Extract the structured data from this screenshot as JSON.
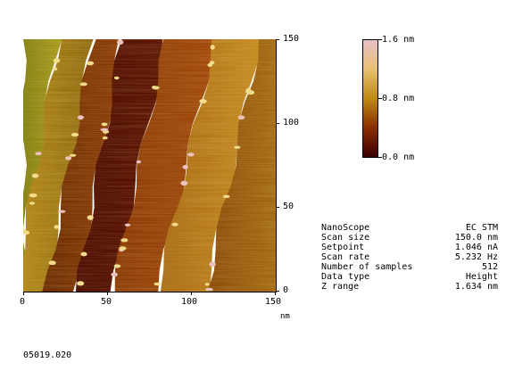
{
  "image": {
    "x_axis": {
      "ticks": [
        "0",
        "50",
        "100",
        "150"
      ],
      "unit": "nm"
    },
    "y_axis": {
      "ticks": [
        "150",
        "100",
        "50",
        "0"
      ]
    },
    "terraces": 5,
    "step_direction": "diagonal-upper-right"
  },
  "colorbar": {
    "top_label": "1.6 nm",
    "mid_label": "0.8 nm",
    "bottom_label": "0.0 nm",
    "colors": [
      "#3a0000",
      "#8a2e00",
      "#bd8a12",
      "#e6c070",
      "#e7c0c8"
    ]
  },
  "params": {
    "rows": [
      {
        "key": "NanoScope",
        "value": "EC STM"
      },
      {
        "key": "Scan size",
        "value": "150.0 nm"
      },
      {
        "key": "Setpoint",
        "value": "1.046 nA"
      },
      {
        "key": "Scan rate",
        "value": "5.232 Hz"
      },
      {
        "key": "Number of samples",
        "value": "512"
      },
      {
        "key": "Data type",
        "value": "Height"
      },
      {
        "key": "Z range",
        "value": "1.634 nm"
      }
    ]
  },
  "file_id": "05019.020"
}
